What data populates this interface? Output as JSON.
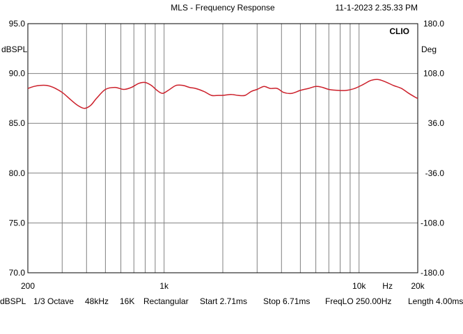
{
  "header": {
    "title": "MLS - Frequency Response",
    "timestamp": "11-1-2023 2.35.33 PM"
  },
  "brand": "CLIO",
  "colors": {
    "trace": "#cc1f2a",
    "grid": "#808080",
    "frame": "#000000"
  },
  "chart_data": {
    "type": "line",
    "x_scale": "log",
    "xlim": [
      200,
      20000
    ],
    "ylim": [
      70,
      95
    ],
    "y2lim": [
      -180,
      180
    ],
    "grid": true,
    "ylabel": "dBSPL",
    "y2label": "Deg",
    "xlabel": "Hz",
    "y_ticks": [
      "95.0",
      "90.0",
      "85.0",
      "80.0",
      "75.0",
      "70.0"
    ],
    "y_tick_values": [
      95,
      90,
      85,
      80,
      75,
      70
    ],
    "y2_ticks": [
      "180.0",
      "108.0",
      "36.0",
      "-36.0",
      "-108.0",
      "-180.0"
    ],
    "x_tick_labels": [
      {
        "value": 200,
        "label": "200"
      },
      {
        "value": 1000,
        "label": "1k"
      },
      {
        "value": 10000,
        "label": "10k"
      },
      {
        "value": 20000,
        "label": "20k"
      }
    ],
    "x_unit_position": 14000,
    "x_gridlines": [
      200,
      300,
      400,
      500,
      600,
      700,
      800,
      900,
      1000,
      2000,
      3000,
      4000,
      5000,
      6000,
      7000,
      8000,
      9000,
      10000,
      20000
    ],
    "series": [
      {
        "x": [
          200,
          215,
          230,
          250,
          270,
          300,
          330,
          360,
          390,
          420,
          450,
          500,
          560,
          620,
          680,
          740,
          800,
          860,
          920,
          980,
          1050,
          1150,
          1250,
          1350,
          1450,
          1600,
          1750,
          1900,
          2000,
          2200,
          2400,
          2600,
          2800,
          3000,
          3250,
          3500,
          3800,
          4100,
          4500,
          5000,
          5500,
          6000,
          6500,
          7000,
          7800,
          8600,
          9500,
          10500,
          11500,
          12500,
          13500,
          15000,
          16500,
          18000,
          19500,
          20000
        ],
        "values": [
          88.5,
          88.7,
          88.8,
          88.8,
          88.6,
          88.1,
          87.4,
          86.8,
          86.5,
          86.8,
          87.5,
          88.4,
          88.6,
          88.4,
          88.6,
          89.0,
          89.1,
          88.8,
          88.3,
          88.0,
          88.3,
          88.8,
          88.8,
          88.6,
          88.5,
          88.2,
          87.8,
          87.8,
          87.8,
          87.9,
          87.8,
          87.8,
          88.2,
          88.4,
          88.7,
          88.5,
          88.5,
          88.1,
          88.0,
          88.3,
          88.5,
          88.7,
          88.6,
          88.4,
          88.3,
          88.3,
          88.5,
          88.9,
          89.3,
          89.4,
          89.2,
          88.8,
          88.5,
          88.0,
          87.6,
          87.5
        ]
      }
    ]
  },
  "footer": {
    "unit": "dBSPL",
    "smoothing": "1/3 Octave",
    "rate": "48kHz",
    "size": "16K",
    "window": "Rectangular",
    "start": "Start 2.71ms",
    "stop": "Stop 6.71ms",
    "freqlo": "FreqLO 250.00Hz",
    "length": "Length 4.00ms"
  }
}
